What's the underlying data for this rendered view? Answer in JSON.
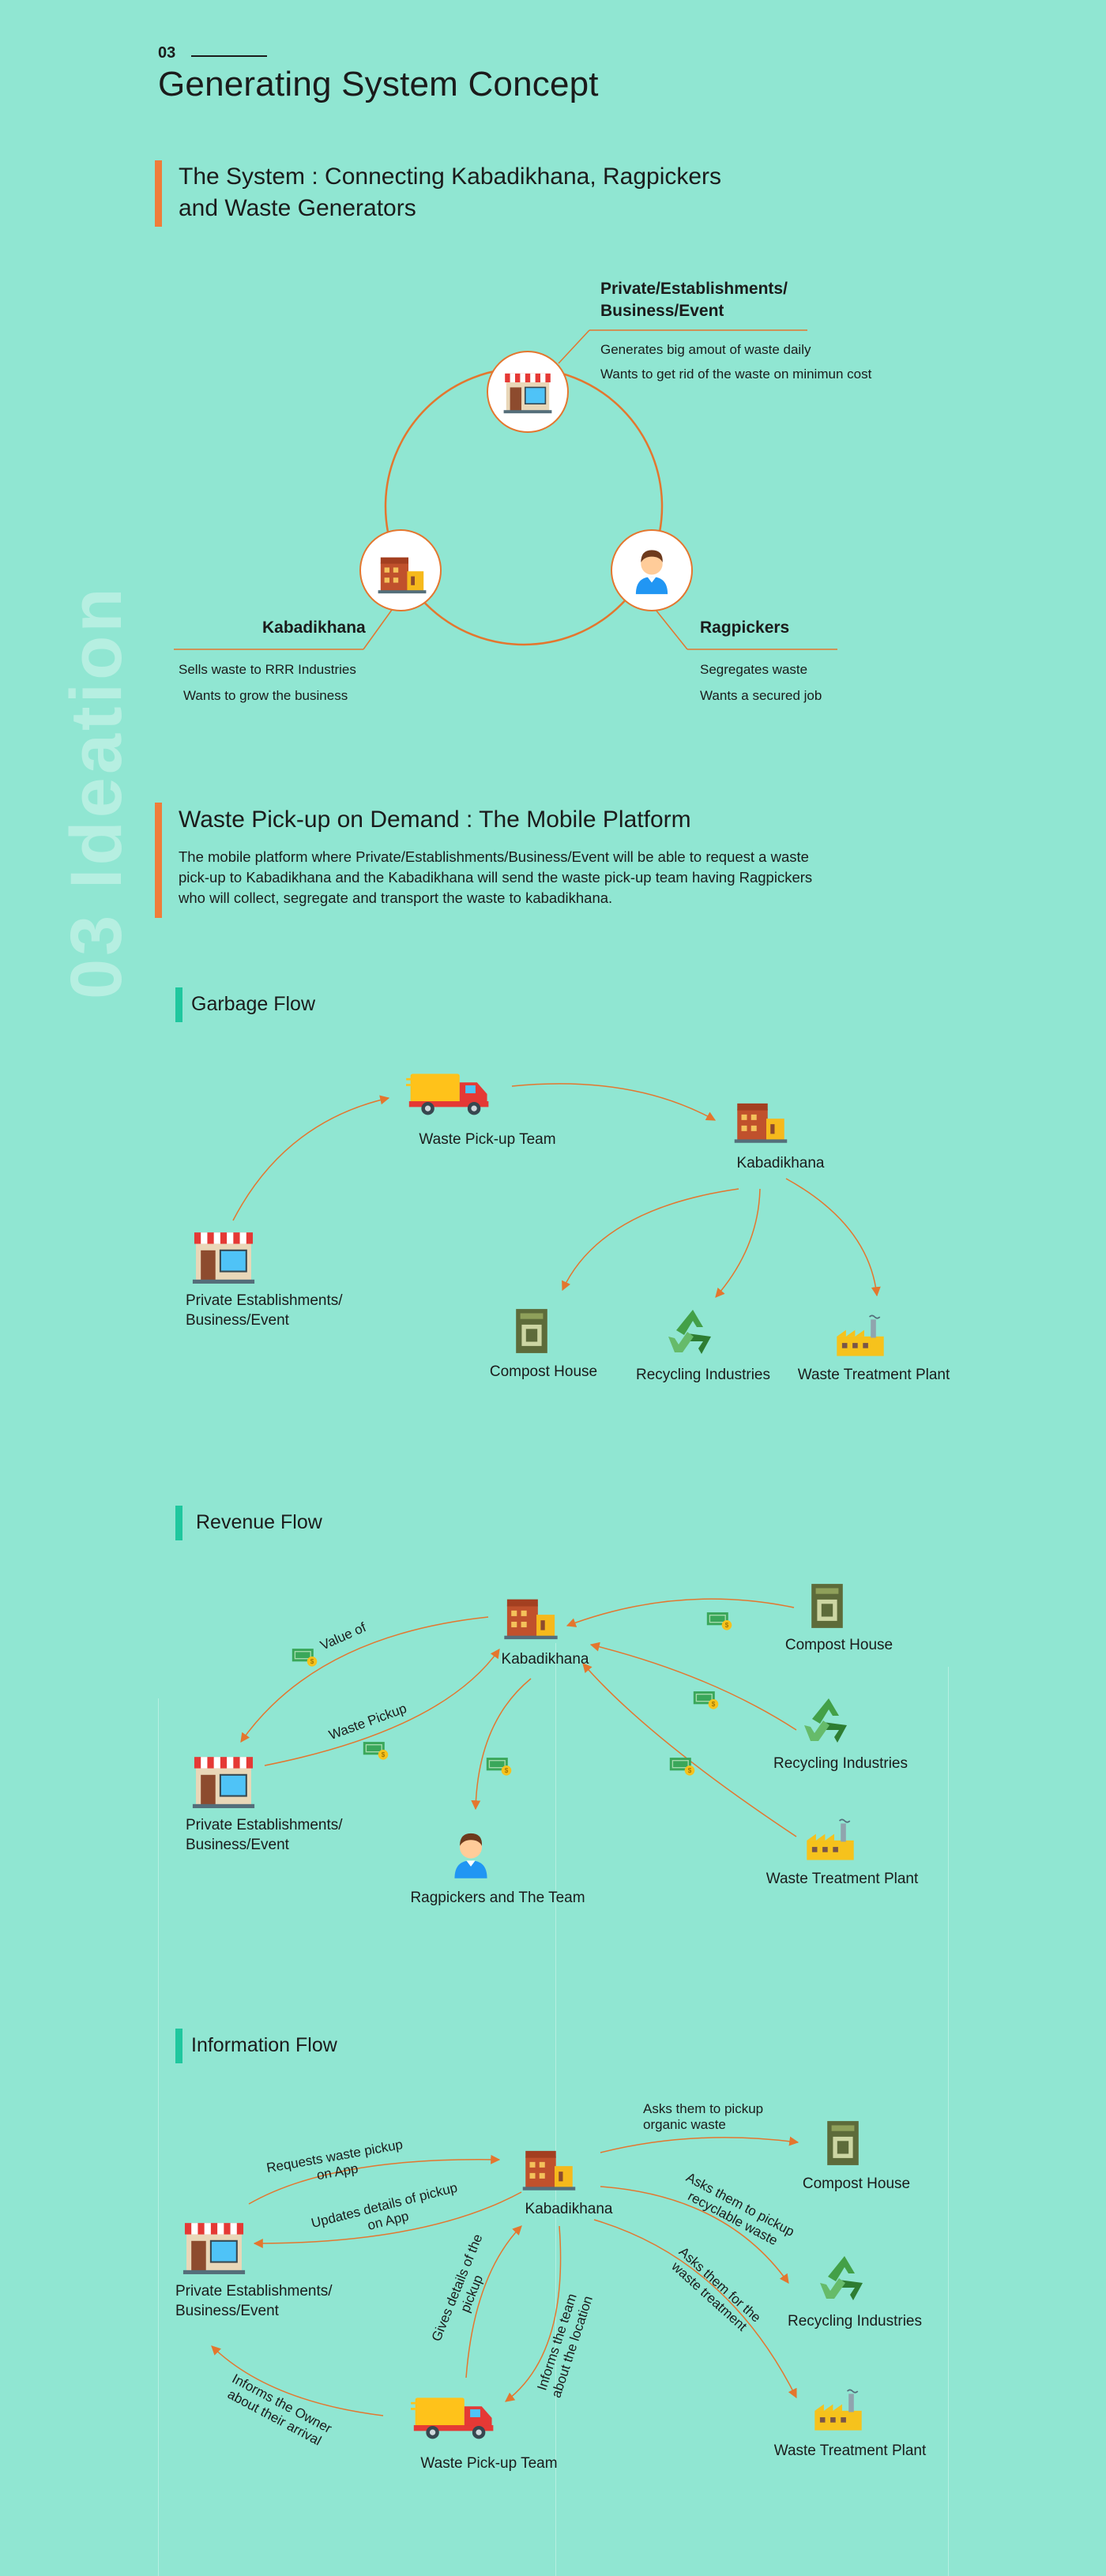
{
  "section": {
    "number": "03",
    "title": "Generating System Concept",
    "vertical": "03  Ideation"
  },
  "system": {
    "title": "The System : Connecting Kabadikhana, Ragpickers and Waste Generators",
    "title_l1": "The System : Connecting Kabadikhana, Ragpickers",
    "title_l2": "and Waste Generators",
    "private": {
      "title": "Private/Establishments/ Business/Event",
      "title_l1": "Private/Establishments/",
      "title_l2": "Business/Event",
      "line1": "Generates big amout of waste daily",
      "line2": "Wants to get rid of the waste on minimun cost"
    },
    "kabadikhana": {
      "title": "Kabadikhana",
      "line1": "Sells waste to RRR Industries",
      "line2": "Wants to grow the business"
    },
    "ragpickers": {
      "title": "Ragpickers",
      "line1": "Segregates waste",
      "line2": "Wants a secured job"
    }
  },
  "platform": {
    "title": "Waste Pick-up on Demand : The Mobile Platform",
    "text": "The mobile platform where Private/Establishments/Business/Event will be able to request a waste pick-up to Kabadikhana and the Kabadikhana will send the waste pick-up team having Ragpickers who will collect, segregate and transport the waste to kabadikhana.",
    "text_l1": "The mobile platform where Private/Establishments/Business/Event will be able to request a waste",
    "text_l2": "pick-up to Kabadikhana and the Kabadikhana will send the waste pick-up team having Ragpickers",
    "text_l3": "who will collect, segregate and transport the waste to kabadikhana."
  },
  "garbage": {
    "title": "Garbage Flow",
    "pickup": "Waste Pick-up Team",
    "kabadikhana": "Kabadikhana",
    "private": "Private Establishments/ Business/Event",
    "private_l1": "Private Establishments/",
    "private_l2": "Business/Event",
    "compost": "Compost House",
    "recycling": "Recycling Industries",
    "treatment": "Waste Treatment Plant"
  },
  "revenue": {
    "title": "Revenue Flow",
    "kabadikhana": "Kabadikhana",
    "compost": "Compost House",
    "recycling": "Recycling Industries",
    "treatment": "Waste Treatment Plant",
    "private_l1": "Private Establishments/",
    "private_l2": "Business/Event",
    "ragpickers": "Ragpickers and The Team",
    "value_of": "Value of",
    "waste_pickup": "Waste Pickup"
  },
  "information": {
    "title": "Information Flow",
    "kabadikhana": "Kabadikhana",
    "compost": "Compost House",
    "recycling": "Recycling Industries",
    "treatment": "Waste Treatment Plant",
    "private_l1": "Private Establishments/",
    "private_l2": "Business/Event",
    "pickup": "Waste Pick-up Team",
    "req_l1": "Requests waste pickup",
    "req_l2": "on App",
    "upd_l1": "Updates details of pickup",
    "upd_l2": "on App",
    "ask_org_l1": "Asks them to pickup",
    "ask_org_l2": "organic waste",
    "ask_rec_l1": "Asks them to pickup",
    "ask_rec_l2": "recyclable waste",
    "ask_tr_l1": "Asks them for the",
    "ask_tr_l2": "waste treatment",
    "gives_l1": "Gives details of the",
    "gives_l2": "pickup",
    "informs_team_l1": "Informs the team",
    "informs_team_l2": "about the location",
    "informs_owner_l1": "Informs the Owner",
    "informs_owner_l2": "about their arrival"
  },
  "colors": {
    "background": "#90e6d2",
    "accent": "#ef7d3a",
    "green": "#1fc79e",
    "arrow": "#e4762e"
  }
}
